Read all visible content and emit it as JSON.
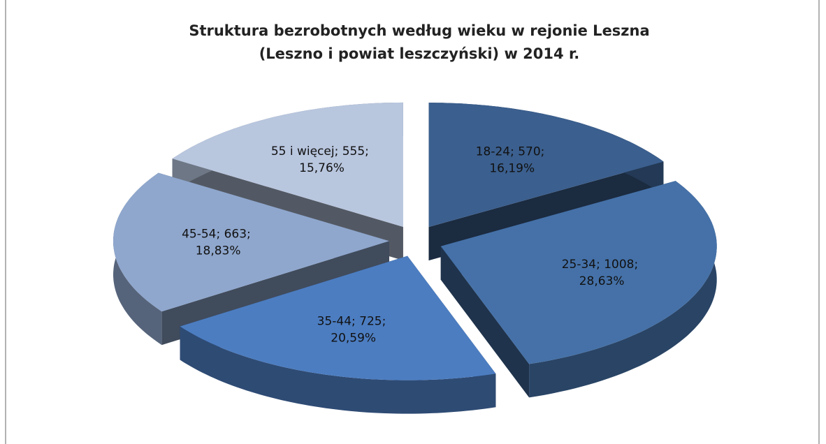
{
  "chart_data": {
    "type": "pie3d",
    "title": [
      "Struktura bezrobotnych według wieku w rejonie Leszna",
      "(Leszno i powiat leszczyński) w 2014 r."
    ],
    "categories": [
      "18-24",
      "25-34",
      "35-44",
      "45-54",
      "55 i więcej"
    ],
    "values": [
      570,
      1008,
      725,
      663,
      555
    ],
    "value_labels": [
      "18-24; 570; 16,19%",
      "25-34; 1008; 28,63%",
      "35-44; 725; 20,59%",
      "45-54; 663; 18,83%",
      "55 i więcej; 555; 15,76%"
    ],
    "colors": [
      "#3b5f8e",
      "#4571a8",
      "#4c7dc1",
      "#8fa7cd",
      "#b8c6de"
    ]
  }
}
